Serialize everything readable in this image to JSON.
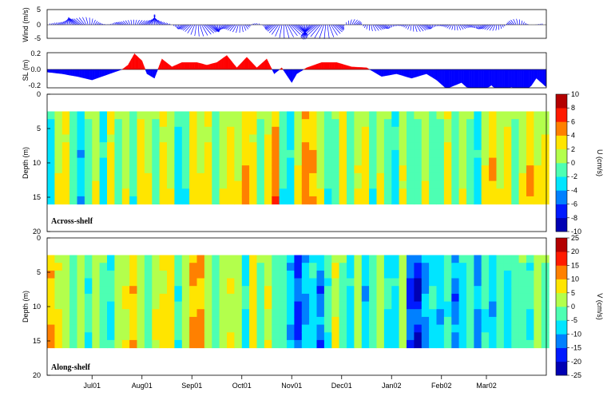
{
  "chart_data": [
    {
      "type": "vector",
      "ylabel": "Wind (m/s)",
      "yticks": [
        5,
        0,
        -5
      ],
      "ylim": [
        -5,
        5
      ],
      "color": "#0000ff",
      "events": [
        {
          "t": 0.6,
          "amp": 3.5,
          "w": 0.35
        },
        {
          "t": 1.5,
          "amp": 1.0,
          "w": 0.3
        },
        {
          "t": 2.1,
          "amp": 3.5,
          "w": 0.35
        },
        {
          "t": 2.8,
          "amp": 1.2,
          "w": 0.25
        },
        {
          "t": 3.0,
          "amp": -5.0,
          "w": 0.4
        },
        {
          "t": 3.8,
          "amp": -3.0,
          "w": 0.3
        },
        {
          "t": 4.15,
          "amp": 2.0,
          "w": 0.2
        },
        {
          "t": 4.7,
          "amp": -3.5,
          "w": 0.4
        },
        {
          "t": 5.25,
          "amp": -4.5,
          "w": 0.4
        },
        {
          "t": 5.8,
          "amp": -4.0,
          "w": 0.35
        },
        {
          "t": 6.1,
          "amp": 5.0,
          "w": 0.25
        },
        {
          "t": 6.5,
          "amp": -3.0,
          "w": 0.3
        },
        {
          "t": 7.4,
          "amp": -2.5,
          "w": 0.3
        },
        {
          "t": 8.2,
          "amp": -1.5,
          "w": 0.4
        },
        {
          "t": 8.9,
          "amp": -2.0,
          "w": 0.4
        },
        {
          "t": 9.4,
          "amp": 2.5,
          "w": 0.2
        }
      ]
    },
    {
      "type": "area",
      "ylabel": "SL (m)",
      "yticks": [
        0.2,
        0.0,
        -0.2
      ],
      "ylim": [
        -0.2,
        0.2
      ],
      "colors": {
        "positive": "#ff0000",
        "negative": "#0000ff"
      },
      "t": [
        0,
        0.3,
        0.6,
        0.9,
        1.2,
        1.5,
        1.62,
        1.75,
        1.9,
        2.0,
        2.15,
        2.3,
        2.5,
        2.7,
        3.0,
        3.2,
        3.4,
        3.6,
        3.8,
        4.0,
        4.2,
        4.4,
        4.55,
        4.7,
        4.9,
        5.0,
        5.2,
        5.5,
        5.8,
        6.1,
        6.4,
        6.7,
        7.0,
        7.3,
        7.6,
        7.8,
        8.0,
        8.3,
        8.6,
        8.9,
        9.1,
        9.3,
        9.5,
        9.8,
        10.0
      ],
      "values": [
        -0.03,
        -0.05,
        -0.08,
        -0.12,
        -0.06,
        0.0,
        0.05,
        0.18,
        0.1,
        -0.05,
        -0.1,
        0.12,
        0.03,
        0.08,
        0.08,
        0.05,
        0.08,
        0.16,
        0.02,
        0.14,
        0.02,
        0.12,
        -0.05,
        0.02,
        -0.15,
        -0.05,
        0.02,
        0.08,
        0.08,
        0.03,
        0.02,
        -0.08,
        -0.05,
        -0.1,
        -0.05,
        -0.12,
        -0.22,
        -0.15,
        -0.3,
        -0.18,
        -0.28,
        -0.2,
        -0.35,
        -0.1,
        -0.2
      ]
    },
    {
      "type": "heatmap",
      "ylabel": "Depth (m)",
      "yticks": [
        0,
        5,
        10,
        15,
        20
      ],
      "ylim": [
        0,
        20
      ],
      "data_depth_range": [
        2.5,
        16
      ],
      "annotation": "Across-shelf",
      "colorbar": {
        "label": "U (cm/s)",
        "ticks": [
          10,
          8,
          6,
          4,
          2,
          0,
          -2,
          -4,
          -6,
          -8,
          -10
        ],
        "range": [
          -10,
          10
        ]
      },
      "time": [
        0.0,
        0.15,
        0.3,
        0.45,
        0.6,
        0.75,
        0.9,
        1.05,
        1.2,
        1.35,
        1.5,
        1.65,
        1.8,
        1.95,
        2.1,
        2.25,
        2.4,
        2.55,
        2.7,
        2.85,
        3.0,
        3.15,
        3.3,
        3.45,
        3.6,
        3.75,
        3.9,
        4.05,
        4.2,
        4.35,
        4.5,
        4.65,
        4.8,
        4.95,
        5.1,
        5.25,
        5.4,
        5.55,
        5.7,
        5.85,
        6.0,
        6.15,
        6.3,
        6.45,
        6.6,
        6.75,
        6.9,
        7.05,
        7.2,
        7.35,
        7.5,
        7.65,
        7.8,
        7.95,
        8.1,
        8.25,
        8.4,
        8.55,
        8.7,
        8.85,
        9.0,
        9.15,
        9.3,
        9.45,
        9.6,
        9.75,
        9.9
      ],
      "values": [
        -2,
        1,
        2,
        -1,
        -3,
        0,
        1,
        -2,
        2,
        0,
        1,
        -1,
        2,
        1,
        0,
        2,
        1,
        -2,
        -1,
        2,
        1,
        2,
        -1,
        1,
        2,
        1,
        3,
        2,
        0,
        2,
        4,
        -1,
        -2,
        1,
        4,
        3,
        1,
        -1,
        0,
        2,
        -1,
        1,
        2,
        -1,
        1,
        0,
        -2,
        1,
        -1,
        0,
        1,
        -1,
        0,
        2,
        -1,
        1,
        0,
        -2,
        1,
        3,
        1,
        2,
        0,
        1,
        3,
        1,
        2
      ]
    },
    {
      "type": "heatmap",
      "ylabel": "Depth (m)",
      "yticks": [
        0,
        5,
        10,
        15,
        20
      ],
      "ylim": [
        0,
        20
      ],
      "data_depth_range": [
        2.5,
        16
      ],
      "annotation": "Along-shelf",
      "xticks": [
        "Jul01",
        "Aug01",
        "Sep01",
        "Oct01",
        "Nov01",
        "Dec01",
        "Jan02",
        "Feb02",
        "Mar02"
      ],
      "xtick_t": [
        0.9,
        1.9,
        2.9,
        3.9,
        4.9,
        5.9,
        6.9,
        7.9,
        8.8
      ],
      "colorbar": {
        "label": "V (cm/s)",
        "ticks": [
          25,
          20,
          15,
          10,
          5,
          0,
          -5,
          -10,
          -15,
          -20,
          -25
        ],
        "range": [
          -25,
          25
        ]
      },
      "time": [
        0.0,
        0.15,
        0.3,
        0.45,
        0.6,
        0.75,
        0.9,
        1.05,
        1.2,
        1.35,
        1.5,
        1.65,
        1.8,
        1.95,
        2.1,
        2.25,
        2.4,
        2.55,
        2.7,
        2.85,
        3.0,
        3.15,
        3.3,
        3.45,
        3.6,
        3.75,
        3.9,
        4.05,
        4.2,
        4.35,
        4.5,
        4.65,
        4.8,
        4.95,
        5.1,
        5.25,
        5.4,
        5.55,
        5.7,
        5.85,
        6.0,
        6.15,
        6.3,
        6.45,
        6.6,
        6.75,
        6.9,
        7.05,
        7.2,
        7.35,
        7.5,
        7.65,
        7.8,
        7.95,
        8.1,
        8.25,
        8.4,
        8.55,
        8.7,
        8.85,
        9.0,
        9.15,
        9.3,
        9.45,
        9.6,
        9.75,
        9.9
      ],
      "values": [
        8,
        4,
        2,
        -2,
        3,
        -4,
        2,
        0,
        -5,
        3,
        4,
        8,
        2,
        -3,
        4,
        5,
        7,
        -4,
        2,
        9,
        10,
        3,
        -3,
        2,
        4,
        3,
        -5,
        6,
        0,
        4,
        -3,
        -2,
        -8,
        -15,
        -10,
        -6,
        -12,
        -4,
        4,
        0,
        -6,
        2,
        -8,
        -3,
        1,
        -5,
        -6,
        2,
        -15,
        -18,
        -10,
        -5,
        -8,
        -4,
        -12,
        -6,
        -3,
        -10,
        -4,
        -8,
        -3,
        -6,
        -2,
        0,
        -4,
        2,
        0
      ]
    }
  ]
}
